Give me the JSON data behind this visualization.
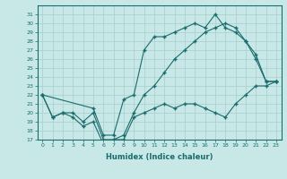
{
  "xlabel": "Humidex (Indice chaleur)",
  "ylabel": "",
  "background_color": "#c8e8e8",
  "line_color": "#1a6b6b",
  "grid_color": "#a8cece",
  "xlim": [
    -0.5,
    23.5
  ],
  "ylim": [
    17,
    32
  ],
  "yticks": [
    17,
    18,
    19,
    20,
    21,
    22,
    23,
    24,
    25,
    26,
    27,
    28,
    29,
    30,
    31
  ],
  "xticks": [
    0,
    1,
    2,
    3,
    4,
    5,
    6,
    7,
    8,
    9,
    10,
    11,
    12,
    13,
    14,
    15,
    16,
    17,
    18,
    19,
    20,
    21,
    22,
    23
  ],
  "line1_x": [
    0,
    1,
    2,
    3,
    4,
    5,
    6,
    7,
    8,
    9,
    10,
    11,
    12,
    13,
    14,
    15,
    16,
    17,
    18,
    19,
    20,
    21,
    22,
    23
  ],
  "line1_y": [
    22,
    19.5,
    20,
    19.5,
    18.5,
    19,
    16.5,
    17,
    17,
    19.5,
    20,
    20.5,
    21,
    20.5,
    21,
    21,
    20.5,
    20,
    19.5,
    21,
    22,
    23,
    23,
    23.5
  ],
  "line2_x": [
    0,
    1,
    2,
    3,
    4,
    5,
    6,
    7,
    8,
    9,
    10,
    11,
    12,
    13,
    14,
    15,
    16,
    17,
    18,
    19,
    20,
    21,
    22,
    23
  ],
  "line2_y": [
    22,
    19.5,
    20,
    20,
    19,
    20,
    17,
    17,
    17.5,
    20,
    22,
    23,
    24.5,
    26,
    27,
    28,
    29,
    29.5,
    30,
    29.5,
    28,
    26,
    23.5,
    23.5
  ],
  "line3_x": [
    0,
    5,
    6,
    7,
    8,
    9,
    10,
    11,
    12,
    13,
    14,
    15,
    16,
    17,
    18,
    19,
    20,
    21,
    22,
    23
  ],
  "line3_y": [
    22,
    20.5,
    17.5,
    17.5,
    21.5,
    22,
    27,
    28.5,
    28.5,
    29,
    29.5,
    30,
    29.5,
    31,
    29.5,
    29,
    28,
    26.5,
    23.5,
    23.5
  ]
}
